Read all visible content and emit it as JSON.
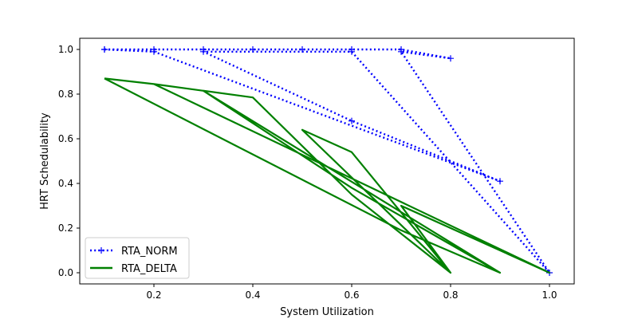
{
  "chart_data": {
    "type": "line",
    "title": "",
    "xlabel": "System Utilization",
    "ylabel": "HRT Schedulability",
    "xlim": [
      0.05,
      1.05
    ],
    "ylim": [
      -0.05,
      1.05
    ],
    "xticks": [
      "0.2",
      "0.4",
      "0.6",
      "0.8",
      "1.0"
    ],
    "yticks": [
      "0.0",
      "0.2",
      "0.4",
      "0.6",
      "0.8",
      "1.0"
    ],
    "grid": false,
    "legend_position": "lower-left",
    "series": [
      {
        "name": "RTA_NORM",
        "color": "#0000ff",
        "style": "dotted",
        "marker": "plus",
        "x": [
          0.1,
          0.2,
          0.3,
          0.4,
          0.5,
          0.6,
          0.7,
          0.8,
          0.7,
          1.0,
          0.6,
          0.3,
          0.6,
          0.9,
          0.2,
          0.1
        ],
        "y": [
          1.0,
          1.0,
          1.0,
          1.0,
          1.0,
          1.0,
          1.0,
          0.96,
          0.99,
          0.0,
          0.99,
          0.99,
          0.68,
          0.41,
          0.99,
          1.0
        ]
      },
      {
        "name": "RTA_DELTA",
        "color": "#008000",
        "style": "solid",
        "marker": "none",
        "x": [
          0.1,
          0.2,
          0.4,
          0.6,
          0.8,
          0.5,
          0.6,
          0.8,
          0.7,
          1.0,
          0.2,
          0.3,
          0.9,
          0.3,
          0.6,
          0.9,
          0.7,
          0.1
        ],
        "y": [
          0.87,
          0.845,
          0.785,
          0.35,
          0.0,
          0.64,
          0.54,
          0.0,
          0.3,
          0.0,
          0.845,
          0.815,
          0.0,
          0.815,
          0.38,
          0.0,
          0.19,
          0.87
        ]
      }
    ]
  }
}
